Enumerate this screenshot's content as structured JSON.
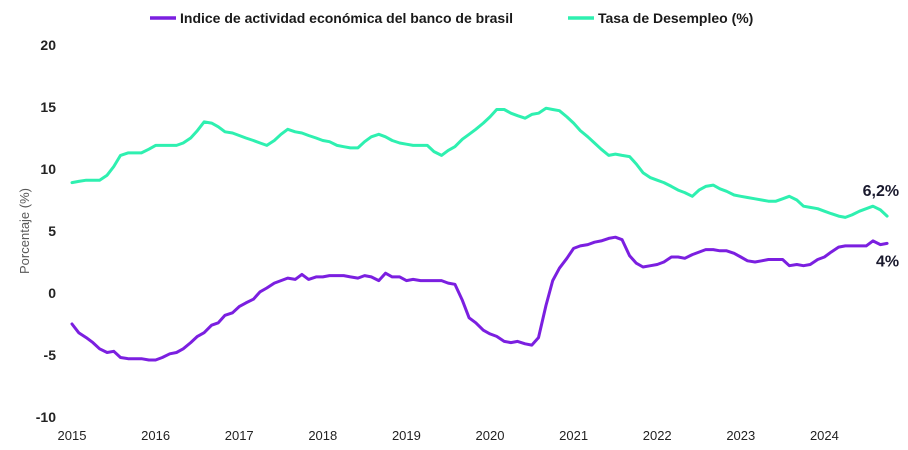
{
  "chart_data": {
    "type": "line",
    "title": "",
    "xlabel": "",
    "ylabel": "Porcentaje (%)",
    "ylim": [
      -10,
      20
    ],
    "y_ticks": [
      "-10",
      "-5",
      "0",
      "5",
      "10",
      "15",
      "20"
    ],
    "x_ticks": [
      "2015",
      "2016",
      "2017",
      "2018",
      "2019",
      "2020",
      "2021",
      "2022",
      "2023",
      "2024"
    ],
    "grid": false,
    "legend_position": "top",
    "series": [
      {
        "name": "Indice de actividad económica del banco de brasil",
        "color": "#7b1fe0",
        "end_label": "4%",
        "points": [
          [
            2015.0,
            -2.5
          ],
          [
            2015.08,
            -3.2
          ],
          [
            2015.17,
            -3.6
          ],
          [
            2015.25,
            -4.0
          ],
          [
            2015.33,
            -4.5
          ],
          [
            2015.42,
            -4.8
          ],
          [
            2015.5,
            -4.7
          ],
          [
            2015.58,
            -5.2
          ],
          [
            2015.67,
            -5.3
          ],
          [
            2015.75,
            -5.3
          ],
          [
            2015.83,
            -5.3
          ],
          [
            2015.92,
            -5.4
          ],
          [
            2016.0,
            -5.4
          ],
          [
            2016.08,
            -5.2
          ],
          [
            2016.17,
            -4.9
          ],
          [
            2016.25,
            -4.8
          ],
          [
            2016.33,
            -4.5
          ],
          [
            2016.42,
            -4.0
          ],
          [
            2016.5,
            -3.5
          ],
          [
            2016.58,
            -3.2
          ],
          [
            2016.67,
            -2.6
          ],
          [
            2016.75,
            -2.4
          ],
          [
            2016.83,
            -1.8
          ],
          [
            2016.92,
            -1.6
          ],
          [
            2017.0,
            -1.1
          ],
          [
            2017.08,
            -0.8
          ],
          [
            2017.17,
            -0.5
          ],
          [
            2017.25,
            0.1
          ],
          [
            2017.33,
            0.4
          ],
          [
            2017.42,
            0.8
          ],
          [
            2017.5,
            1.0
          ],
          [
            2017.58,
            1.2
          ],
          [
            2017.67,
            1.1
          ],
          [
            2017.75,
            1.5
          ],
          [
            2017.83,
            1.1
          ],
          [
            2017.92,
            1.3
          ],
          [
            2018.0,
            1.3
          ],
          [
            2018.08,
            1.4
          ],
          [
            2018.17,
            1.4
          ],
          [
            2018.25,
            1.4
          ],
          [
            2018.33,
            1.3
          ],
          [
            2018.42,
            1.2
          ],
          [
            2018.5,
            1.4
          ],
          [
            2018.58,
            1.3
          ],
          [
            2018.67,
            1.0
          ],
          [
            2018.75,
            1.6
          ],
          [
            2018.83,
            1.3
          ],
          [
            2018.92,
            1.3
          ],
          [
            2019.0,
            1.0
          ],
          [
            2019.08,
            1.1
          ],
          [
            2019.17,
            1.0
          ],
          [
            2019.25,
            1.0
          ],
          [
            2019.33,
            1.0
          ],
          [
            2019.42,
            1.0
          ],
          [
            2019.5,
            0.8
          ],
          [
            2019.58,
            0.7
          ],
          [
            2019.67,
            -0.6
          ],
          [
            2019.75,
            -2.0
          ],
          [
            2019.83,
            -2.4
          ],
          [
            2019.92,
            -3.0
          ],
          [
            2020.0,
            -3.3
          ],
          [
            2020.08,
            -3.5
          ],
          [
            2020.17,
            -3.9
          ],
          [
            2020.25,
            -4.0
          ],
          [
            2020.33,
            -3.9
          ],
          [
            2020.42,
            -4.1
          ],
          [
            2020.5,
            -4.2
          ],
          [
            2020.58,
            -3.6
          ],
          [
            2020.67,
            -1.0
          ],
          [
            2020.75,
            1.0
          ],
          [
            2020.83,
            2.0
          ],
          [
            2020.92,
            2.8
          ],
          [
            2021.0,
            3.6
          ],
          [
            2021.08,
            3.8
          ],
          [
            2021.17,
            3.9
          ],
          [
            2021.25,
            4.1
          ],
          [
            2021.33,
            4.2
          ],
          [
            2021.42,
            4.4
          ],
          [
            2021.5,
            4.5
          ],
          [
            2021.58,
            4.3
          ],
          [
            2021.67,
            3.0
          ],
          [
            2021.75,
            2.4
          ],
          [
            2021.83,
            2.1
          ],
          [
            2021.92,
            2.2
          ],
          [
            2022.0,
            2.3
          ],
          [
            2022.08,
            2.5
          ],
          [
            2022.17,
            2.9
          ],
          [
            2022.25,
            2.9
          ],
          [
            2022.33,
            2.8
          ],
          [
            2022.42,
            3.1
          ],
          [
            2022.5,
            3.3
          ],
          [
            2022.58,
            3.5
          ],
          [
            2022.67,
            3.5
          ],
          [
            2022.75,
            3.4
          ],
          [
            2022.83,
            3.4
          ],
          [
            2022.92,
            3.2
          ],
          [
            2023.0,
            2.9
          ],
          [
            2023.08,
            2.6
          ],
          [
            2023.17,
            2.5
          ],
          [
            2023.25,
            2.6
          ],
          [
            2023.33,
            2.7
          ],
          [
            2023.42,
            2.7
          ],
          [
            2023.5,
            2.7
          ],
          [
            2023.58,
            2.2
          ],
          [
            2023.67,
            2.3
          ],
          [
            2023.75,
            2.2
          ],
          [
            2023.83,
            2.3
          ],
          [
            2023.92,
            2.7
          ],
          [
            2024.0,
            2.9
          ],
          [
            2024.08,
            3.3
          ],
          [
            2024.17,
            3.7
          ],
          [
            2024.25,
            3.8
          ],
          [
            2024.33,
            3.8
          ],
          [
            2024.42,
            3.8
          ],
          [
            2024.5,
            3.8
          ],
          [
            2024.58,
            4.2
          ],
          [
            2024.67,
            3.9
          ],
          [
            2024.75,
            4.0
          ]
        ]
      },
      {
        "name": "Tasa de Desempleo (%)",
        "color": "#2ef0b0",
        "end_label": "6,2%",
        "points": [
          [
            2015.0,
            8.9
          ],
          [
            2015.08,
            9.0
          ],
          [
            2015.17,
            9.1
          ],
          [
            2015.25,
            9.1
          ],
          [
            2015.33,
            9.1
          ],
          [
            2015.42,
            9.5
          ],
          [
            2015.5,
            10.2
          ],
          [
            2015.58,
            11.1
          ],
          [
            2015.67,
            11.3
          ],
          [
            2015.75,
            11.3
          ],
          [
            2015.83,
            11.3
          ],
          [
            2015.92,
            11.6
          ],
          [
            2016.0,
            11.9
          ],
          [
            2016.08,
            11.9
          ],
          [
            2016.17,
            11.9
          ],
          [
            2016.25,
            11.9
          ],
          [
            2016.33,
            12.1
          ],
          [
            2016.42,
            12.5
          ],
          [
            2016.5,
            13.1
          ],
          [
            2016.58,
            13.8
          ],
          [
            2016.67,
            13.7
          ],
          [
            2016.75,
            13.4
          ],
          [
            2016.83,
            13.0
          ],
          [
            2016.92,
            12.9
          ],
          [
            2017.0,
            12.7
          ],
          [
            2017.08,
            12.5
          ],
          [
            2017.17,
            12.3
          ],
          [
            2017.25,
            12.1
          ],
          [
            2017.33,
            11.9
          ],
          [
            2017.42,
            12.3
          ],
          [
            2017.5,
            12.8
          ],
          [
            2017.58,
            13.2
          ],
          [
            2017.67,
            13.0
          ],
          [
            2017.75,
            12.9
          ],
          [
            2017.83,
            12.7
          ],
          [
            2017.92,
            12.5
          ],
          [
            2018.0,
            12.3
          ],
          [
            2018.08,
            12.2
          ],
          [
            2018.17,
            11.9
          ],
          [
            2018.25,
            11.8
          ],
          [
            2018.33,
            11.7
          ],
          [
            2018.42,
            11.7
          ],
          [
            2018.5,
            12.2
          ],
          [
            2018.58,
            12.6
          ],
          [
            2018.67,
            12.8
          ],
          [
            2018.75,
            12.6
          ],
          [
            2018.83,
            12.3
          ],
          [
            2018.92,
            12.1
          ],
          [
            2019.0,
            12.0
          ],
          [
            2019.08,
            11.9
          ],
          [
            2019.17,
            11.9
          ],
          [
            2019.25,
            11.9
          ],
          [
            2019.33,
            11.4
          ],
          [
            2019.42,
            11.1
          ],
          [
            2019.5,
            11.5
          ],
          [
            2019.58,
            11.8
          ],
          [
            2019.67,
            12.4
          ],
          [
            2019.75,
            12.8
          ],
          [
            2019.83,
            13.2
          ],
          [
            2019.92,
            13.7
          ],
          [
            2020.0,
            14.2
          ],
          [
            2020.08,
            14.8
          ],
          [
            2020.17,
            14.8
          ],
          [
            2020.25,
            14.5
          ],
          [
            2020.33,
            14.3
          ],
          [
            2020.42,
            14.1
          ],
          [
            2020.5,
            14.4
          ],
          [
            2020.58,
            14.5
          ],
          [
            2020.67,
            14.9
          ],
          [
            2020.75,
            14.8
          ],
          [
            2020.83,
            14.7
          ],
          [
            2020.92,
            14.2
          ],
          [
            2021.0,
            13.7
          ],
          [
            2021.08,
            13.1
          ],
          [
            2021.17,
            12.6
          ],
          [
            2021.25,
            12.1
          ],
          [
            2021.33,
            11.6
          ],
          [
            2021.42,
            11.1
          ],
          [
            2021.5,
            11.2
          ],
          [
            2021.58,
            11.1
          ],
          [
            2021.67,
            11.0
          ],
          [
            2021.75,
            10.4
          ],
          [
            2021.83,
            9.7
          ],
          [
            2021.92,
            9.3
          ],
          [
            2022.0,
            9.1
          ],
          [
            2022.08,
            8.9
          ],
          [
            2022.17,
            8.6
          ],
          [
            2022.25,
            8.3
          ],
          [
            2022.33,
            8.1
          ],
          [
            2022.42,
            7.8
          ],
          [
            2022.5,
            8.3
          ],
          [
            2022.58,
            8.6
          ],
          [
            2022.67,
            8.7
          ],
          [
            2022.75,
            8.4
          ],
          [
            2022.83,
            8.2
          ],
          [
            2022.92,
            7.9
          ],
          [
            2023.0,
            7.8
          ],
          [
            2023.08,
            7.7
          ],
          [
            2023.17,
            7.6
          ],
          [
            2023.25,
            7.5
          ],
          [
            2023.33,
            7.4
          ],
          [
            2023.42,
            7.4
          ],
          [
            2023.5,
            7.6
          ],
          [
            2023.58,
            7.8
          ],
          [
            2023.67,
            7.5
          ],
          [
            2023.75,
            7.0
          ],
          [
            2023.83,
            6.9
          ],
          [
            2023.92,
            6.8
          ],
          [
            2024.0,
            6.6
          ],
          [
            2024.08,
            6.4
          ],
          [
            2024.17,
            6.2
          ],
          [
            2024.25,
            6.1
          ],
          [
            2024.33,
            6.3
          ],
          [
            2024.42,
            6.6
          ],
          [
            2024.5,
            6.8
          ],
          [
            2024.58,
            7.0
          ],
          [
            2024.67,
            6.7
          ],
          [
            2024.75,
            6.2
          ]
        ]
      }
    ]
  }
}
